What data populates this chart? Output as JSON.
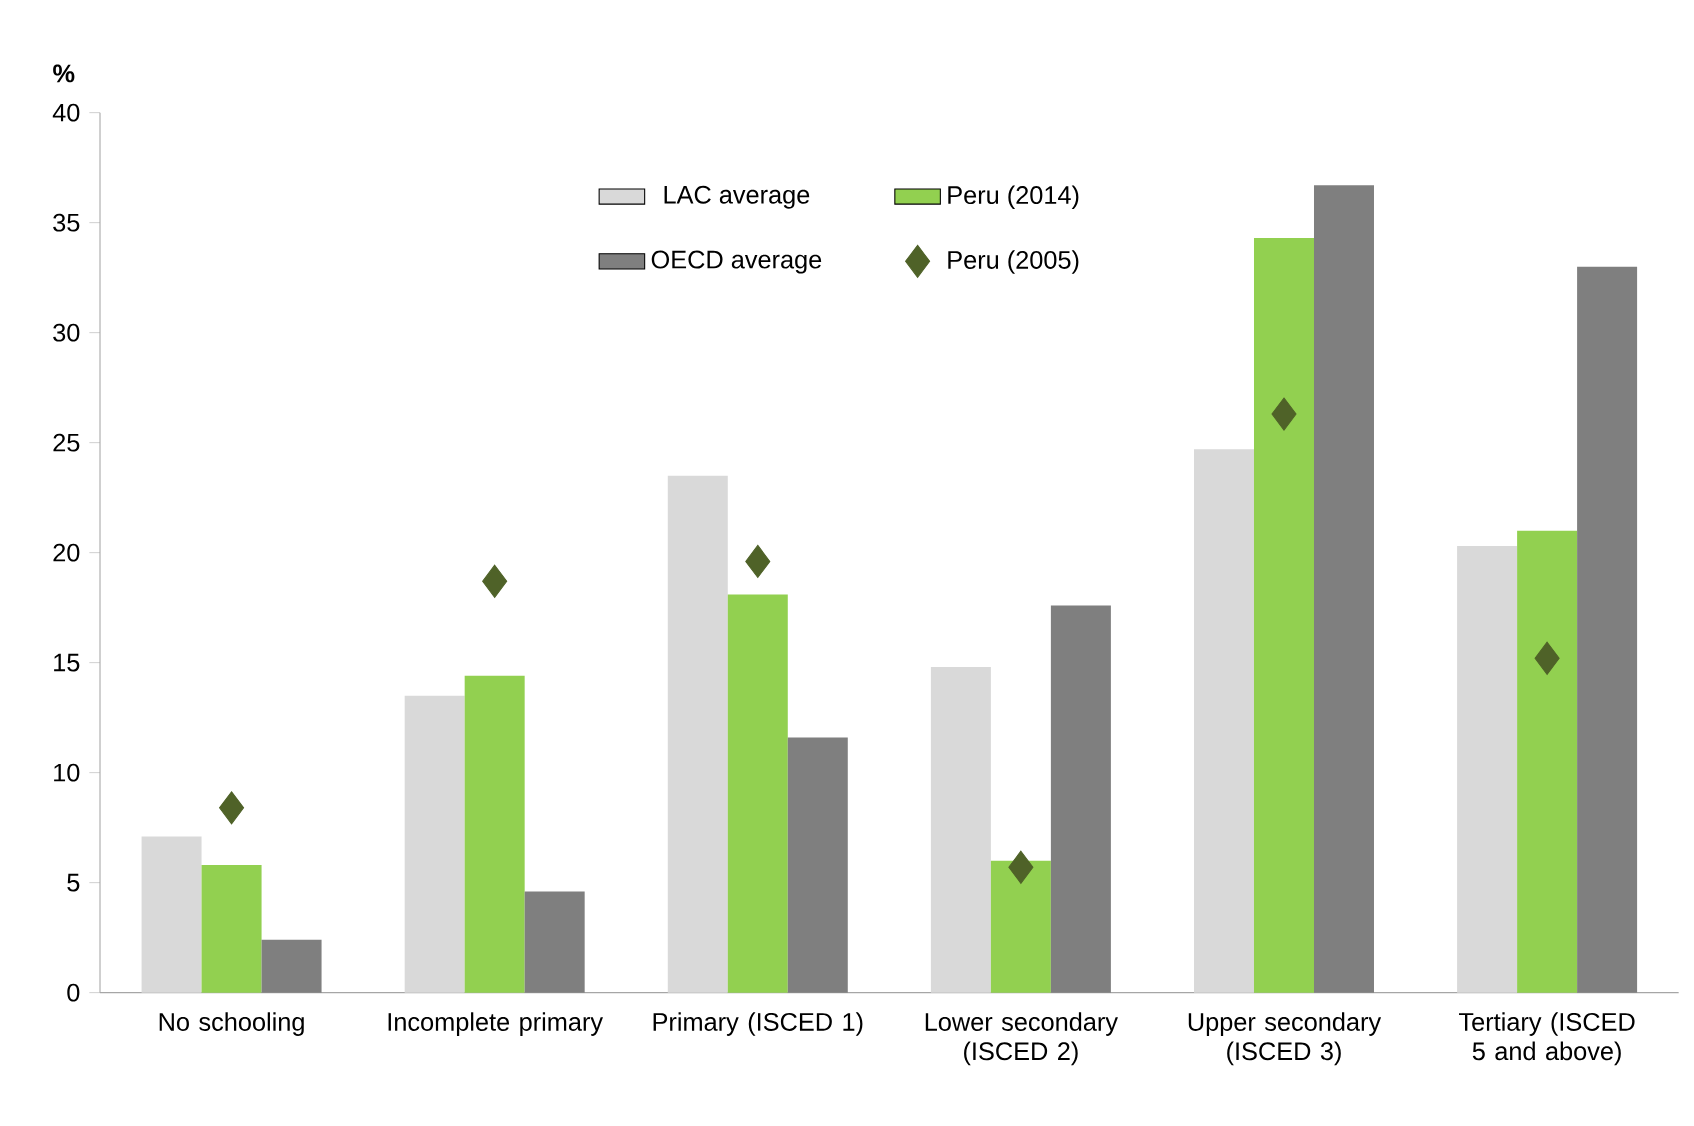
{
  "chart_data": {
    "type": "bar",
    "ylabel": "%",
    "categories": [
      "No schooling",
      "Incomplete primary",
      "Primary (ISCED 1)",
      "Lower secondary (ISCED 2)",
      "Upper secondary (ISCED 3)",
      "Tertiary (ISCED 5 and above)"
    ],
    "series": [
      {
        "name": "LAC average",
        "color": "#d9d9d9",
        "values": [
          7.1,
          13.5,
          23.5,
          14.8,
          24.7,
          20.3
        ]
      },
      {
        "name": "Peru (2014)",
        "color": "#92d050",
        "values": [
          5.8,
          14.4,
          18.1,
          6.0,
          34.3,
          21.0
        ]
      },
      {
        "name": "OECD average",
        "color": "#7f7f7f",
        "values": [
          2.4,
          4.6,
          11.6,
          17.6,
          36.7,
          33.0
        ]
      },
      {
        "name": "Peru (2005)",
        "type": "scatter",
        "marker": "diamond",
        "color": "#4f6228",
        "values": [
          8.4,
          18.7,
          19.6,
          5.7,
          26.3,
          15.2
        ]
      }
    ],
    "ylim": [
      0,
      40
    ],
    "yticks": [
      0,
      5,
      10,
      15,
      20,
      25,
      30,
      35,
      40
    ],
    "grid": false,
    "legend": "top"
  }
}
